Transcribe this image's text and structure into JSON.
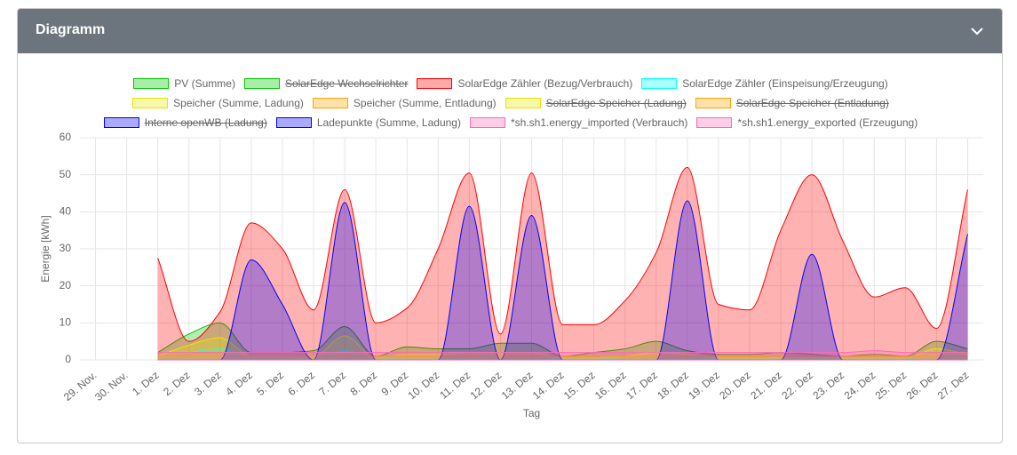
{
  "header": {
    "title": "Diagramm"
  },
  "chart_data": {
    "type": "area",
    "x_label": "Tag",
    "y_label": "Energie [kWh]",
    "categories": [
      "29. Nov.",
      "30. Nov.",
      "1. Dez",
      "2. Dez",
      "3. Dez",
      "4. Dez",
      "5. Dez",
      "6. Dez",
      "7. Dez",
      "8. Dez",
      "9. Dez",
      "10. Dez",
      "11. Dez",
      "12. Dez",
      "13. Dez",
      "14. Dez",
      "15. Dez",
      "16. Dez",
      "17. Dez",
      "18. Dez",
      "19. Dez",
      "20. Dez",
      "21. Dez",
      "22. Dez",
      "23. Dez",
      "24. Dez",
      "25. Dez",
      "26. Dez",
      "27. Dez"
    ],
    "ylim": [
      0,
      60
    ],
    "yticks": [
      0,
      10,
      20,
      30,
      40,
      50,
      60
    ],
    "grid": true,
    "series": [
      {
        "name": "PV (Summe)",
        "color": "#00c800",
        "values": [
          null,
          null,
          2,
          7,
          10,
          2,
          2,
          2.5,
          9,
          1,
          3.5,
          3,
          3,
          4.5,
          4.5,
          1,
          2,
          3,
          5,
          2.5,
          1.5,
          1.5,
          2,
          1.5,
          1,
          1.5,
          1,
          5,
          3
        ]
      },
      {
        "name": "SolarEdge Wechselrichter",
        "color": "#00c800",
        "hidden": true
      },
      {
        "name": "SolarEdge Zähler (Bezug/Verbrauch)",
        "color": "#ff0000",
        "values": [
          null,
          null,
          27.5,
          5,
          13,
          37,
          30,
          13.5,
          46,
          10,
          14,
          30,
          50.5,
          7,
          50.5,
          9.5,
          9.5,
          16,
          29,
          52,
          15,
          13.5,
          35,
          50,
          32,
          17,
          19.5,
          8.5,
          46
        ]
      },
      {
        "name": "SolarEdge Zähler (Einspeisung/Erzeugung)",
        "color": "#00ffff",
        "values": [
          null,
          null,
          0.5,
          2,
          3,
          0.5,
          0.5,
          0.5,
          2.5,
          0.3,
          0.5,
          0.5,
          0.5,
          1,
          1,
          0.3,
          0.3,
          0.5,
          1,
          0.5,
          0.3,
          0.3,
          0.3,
          0.3,
          0.3,
          0.3,
          0.3,
          1,
          0.5
        ]
      },
      {
        "name": "Speicher (Summe, Ladung)",
        "color": "#e6e600",
        "values": [
          null,
          null,
          1,
          4,
          6,
          1,
          1,
          1,
          6.5,
          0.5,
          1.5,
          1.5,
          2,
          2,
          2,
          0.5,
          0.5,
          1,
          2,
          1.5,
          0.5,
          0.5,
          0.5,
          0.5,
          0.5,
          0.5,
          0.5,
          3,
          1.5
        ]
      },
      {
        "name": "Speicher (Summe, Entladung)",
        "color": "#ffa500",
        "values": [
          null,
          null,
          1,
          1.5,
          1.5,
          1,
          1,
          1,
          1.5,
          1,
          1,
          1,
          1,
          1,
          1,
          1,
          1,
          1,
          1,
          1,
          1,
          1,
          1,
          1,
          1,
          1,
          1,
          1,
          1
        ]
      },
      {
        "name": "SolarEdge Speicher (Ladung)",
        "color": "#e6e600",
        "hidden": true
      },
      {
        "name": "SolarEdge Speicher (Entladung)",
        "color": "#ffa500",
        "hidden": true
      },
      {
        "name": "Interne openWB (Ladung)",
        "color": "#0000ff",
        "hidden": true
      },
      {
        "name": "Ladepunkte (Summe, Ladung)",
        "color": "#0000ff",
        "values": [
          null,
          null,
          0,
          0,
          0,
          27,
          15,
          0,
          42.5,
          0,
          0,
          0,
          41.5,
          0,
          39,
          0,
          0,
          0,
          0,
          43,
          0,
          0,
          0,
          28.5,
          0,
          0,
          0,
          0,
          34
        ]
      },
      {
        "name": "*sh.sh1.energy_imported (Verbrauch)",
        "color": "#ff69b4",
        "values": [
          null,
          null,
          2,
          2,
          2,
          2,
          2,
          2,
          2,
          2,
          2,
          2,
          2,
          2,
          2,
          2,
          2,
          2,
          2,
          2,
          2,
          2,
          2,
          2,
          2,
          2.5,
          2,
          2,
          2
        ]
      },
      {
        "name": "*sh.sh1.energy_exported (Erzeugung)",
        "color": "#ff69b4",
        "values": [
          null,
          null,
          0,
          0,
          0,
          0,
          0,
          0,
          0,
          0,
          0,
          0,
          0,
          0,
          0,
          0,
          0,
          0,
          0,
          0,
          0,
          0,
          0,
          0,
          0,
          0,
          0,
          0,
          0
        ]
      }
    ]
  }
}
